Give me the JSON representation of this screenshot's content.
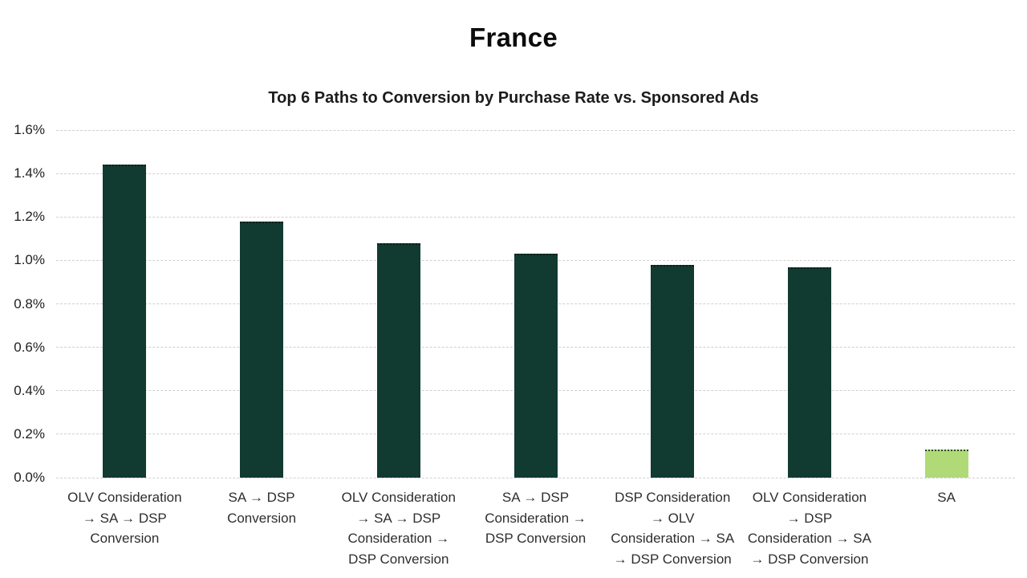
{
  "page": {
    "title": "France",
    "subtitle": "Top 6 Paths to Conversion by Purchase Rate vs. Sponsored Ads"
  },
  "chart_data": {
    "type": "bar",
    "title": "France",
    "subtitle": "Top 6 Paths to Conversion by Purchase Rate vs. Sponsored Ads",
    "categories": [
      "OLV Consideration → SA → DSP Conversion",
      "SA → DSP Conversion",
      "OLV Consideration → SA → DSP Consideration → DSP Conversion",
      "SA → DSP Consideration → DSP Conversion",
      "DSP Consideration → OLV Consideration → SA → DSP Conversion",
      "OLV Consideration → DSP Consideration → SA → DSP Conversion",
      "SA"
    ],
    "category_lines": [
      [
        "OLV Consideration",
        "→ SA → DSP",
        "Conversion"
      ],
      [
        "SA → DSP",
        "Conversion"
      ],
      [
        "OLV Consideration",
        "→ SA → DSP",
        "Consideration →",
        "DSP Conversion"
      ],
      [
        "SA → DSP",
        "Consideration →",
        "DSP Conversion"
      ],
      [
        "DSP Consideration",
        "→ OLV",
        "Consideration → SA",
        "→ DSP Conversion"
      ],
      [
        "OLV Consideration",
        "→ DSP",
        "Consideration → SA",
        "→ DSP Conversion"
      ],
      [
        "SA"
      ]
    ],
    "values": [
      1.44,
      1.18,
      1.08,
      1.03,
      0.98,
      0.97,
      0.13
    ],
    "value_unit": "%",
    "bar_colors": [
      "#113a31",
      "#113a31",
      "#113a31",
      "#113a31",
      "#113a31",
      "#113a31",
      "#b0da78"
    ],
    "accent_colors": {
      "path_bar": "#113a31",
      "sponsored_ads_bar": "#b0da78"
    },
    "xlabel": "",
    "ylabel": "",
    "ylim": [
      0,
      1.6
    ],
    "ytick_values": [
      0,
      0.2,
      0.4,
      0.6,
      0.8,
      1.0,
      1.2,
      1.4,
      1.6
    ],
    "ytick_labels": [
      "0.0%",
      "0.2%",
      "0.4%",
      "0.6%",
      "0.8%",
      "1.0%",
      "1.2%",
      "1.4%",
      "1.6%"
    ],
    "grid": "horizontal-dashed",
    "legend": "none"
  }
}
